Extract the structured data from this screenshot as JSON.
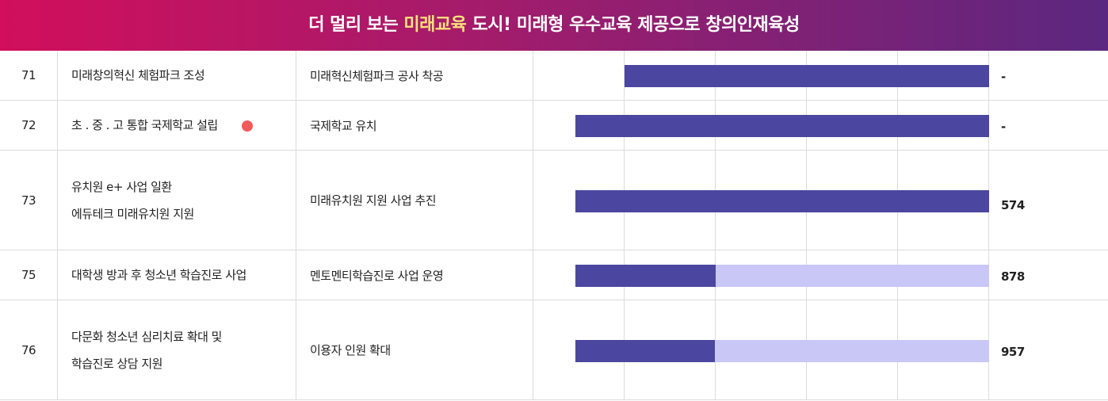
{
  "header": {
    "title": [
      "더 멀리 보는 ",
      "미래교육",
      " 도시!  미래형 우수교육 제공으로 창의인재육성"
    ]
  },
  "table": {
    "rows": [
      {
        "no": "71",
        "project": [
          "미래창의혁신 체험파크 조성"
        ],
        "detail": "미래혁신체험파크 공사 착공",
        "budget": "-"
      },
      {
        "no": "72",
        "project": [
          "초 . 중 . 고 통합 국제학교 설립"
        ],
        "detail": "국제학교 유치",
        "budget": "-"
      },
      {
        "no": "73",
        "project": [
          "유치원 e+ 사업 일환",
          "에듀테크 미래유치원 지원"
        ],
        "detail": "미래유치원 지원 사업 추진",
        "budget": "574"
      },
      {
        "no": "75",
        "project": [
          "대학생 방과 후 청소년 학습진로 사업"
        ],
        "detail": "멘토멘티학습진로 사업 운영",
        "budget": "878"
      },
      {
        "no": "76",
        "project": [
          "다문화 청소년 심리치료 확대 및",
          "학습진로 상담 지원"
        ],
        "detail": "이용자 인원 확대",
        "budget": "957"
      }
    ]
  }
}
